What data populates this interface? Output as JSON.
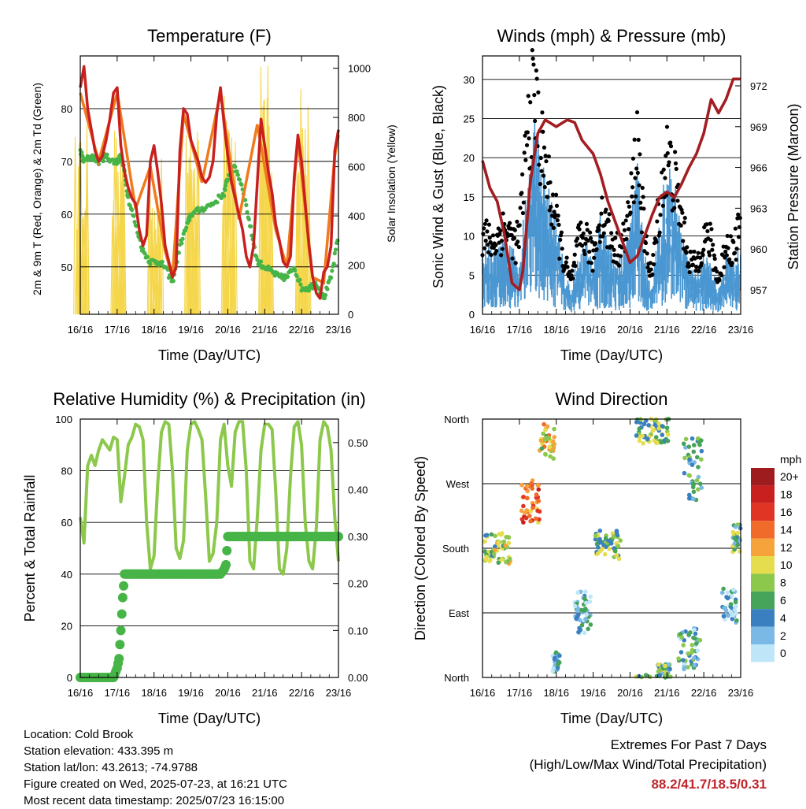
{
  "colors": {
    "temp_red": "#c8201e",
    "temp_orange": "#f07a1e",
    "dewpoint_green": "#46b446",
    "solar_yellow": "#f5d64a",
    "wind_blue": "#4a97d2",
    "gust_black": "#000000",
    "pressure_maroon": "#a31e22",
    "rh_lightgreen": "#8cc84b",
    "precip_green": "#46b446",
    "extremes_red": "#c0262c"
  },
  "time_ticks": [
    "16/16",
    "17/16",
    "18/16",
    "19/16",
    "20/16",
    "21/16",
    "22/16",
    "23/16"
  ],
  "chart_data": [
    {
      "id": "temperature",
      "type": "line",
      "title": "Temperature (F)",
      "xlabel": "Time (Day/UTC)",
      "ylabel": "2m & 9m T (Red, Orange) & 2m Td (Green)",
      "ylabel_right": "Solar Insolation (Yellow)",
      "ylim": [
        41,
        90
      ],
      "yticks": [
        50,
        60,
        70,
        80
      ],
      "ylim_right": [
        0,
        1050
      ],
      "yticks_right": [
        0,
        200,
        400,
        600,
        800,
        1000
      ],
      "xlim": [
        0,
        7
      ],
      "series": [
        {
          "key": "t2m",
          "x": [
            0,
            0.1,
            0.2,
            0.3,
            0.4,
            0.5,
            0.6,
            0.7,
            0.8,
            0.9,
            1.0,
            1.1,
            1.2,
            1.3,
            1.4,
            1.5,
            1.6,
            1.7,
            1.8,
            1.9,
            2.0,
            2.1,
            2.2,
            2.3,
            2.4,
            2.5,
            2.6,
            2.7,
            2.8,
            2.9,
            3.0,
            3.1,
            3.2,
            3.3,
            3.4,
            3.5,
            3.6,
            3.7,
            3.8,
            3.9,
            4.0,
            4.1,
            4.2,
            4.3,
            4.4,
            4.5,
            4.6,
            4.7,
            4.8,
            4.9,
            5.0,
            5.1,
            5.2,
            5.3,
            5.4,
            5.5,
            5.6,
            5.7,
            5.8,
            5.9,
            6.0,
            6.1,
            6.2,
            6.3,
            6.4,
            6.5,
            6.6,
            6.7,
            6.8,
            6.9,
            7.0
          ],
          "y": [
            84,
            88,
            80,
            76,
            72,
            70,
            71,
            74,
            78,
            83,
            84,
            73,
            68,
            65,
            63,
            62,
            57,
            54,
            56,
            70,
            73,
            68,
            62,
            54,
            51,
            48,
            50,
            72,
            80,
            79,
            74,
            72,
            70,
            67,
            66,
            67,
            70,
            79,
            84,
            77,
            71,
            66,
            63,
            60,
            57,
            52,
            50,
            54,
            66,
            78,
            73,
            68,
            64,
            58,
            55,
            51,
            50,
            52,
            67,
            75,
            70,
            62,
            54,
            48,
            45,
            44,
            49,
            50,
            54,
            72,
            76
          ]
        },
        {
          "key": "t9m",
          "x": [
            0,
            0.5,
            1.0,
            1.5,
            1.9,
            2.3,
            2.5,
            2.8,
            3.3,
            3.8,
            4.3,
            4.8,
            5.3,
            5.6,
            5.9,
            6.3,
            6.6,
            6.9,
            7.0
          ],
          "y": [
            83,
            70,
            83,
            61,
            69,
            53,
            48,
            79,
            66,
            83,
            59,
            77,
            57,
            50,
            74,
            48,
            47,
            71,
            75
          ]
        },
        {
          "key": "td2m",
          "x": [
            0,
            0.1,
            0.3,
            0.5,
            0.7,
            0.9,
            1.0,
            1.1,
            1.2,
            1.3,
            1.5,
            1.7,
            1.9,
            2.1,
            2.3,
            2.5,
            2.7,
            2.9,
            3.0,
            3.3,
            3.6,
            3.9,
            4.0,
            4.2,
            4.4,
            4.6,
            4.8,
            5.0,
            5.2,
            5.4,
            5.6,
            5.8,
            6.0,
            6.2,
            6.4,
            6.6,
            6.8,
            7.0
          ],
          "y": [
            72,
            70,
            71,
            70,
            71,
            70,
            70,
            71,
            68,
            63,
            58,
            53,
            51,
            51,
            50,
            47,
            54,
            58,
            60,
            61,
            62,
            64,
            67,
            69,
            65,
            58,
            51,
            50,
            49,
            48,
            48,
            50,
            46,
            46,
            47,
            44,
            48,
            56
          ]
        },
        {
          "key": "solar",
          "axis": "right",
          "days": [
            0,
            1,
            2,
            3,
            4,
            5,
            6
          ],
          "peaks": [
            800,
            770,
            640,
            880,
            900,
            1050,
            960
          ]
        }
      ]
    },
    {
      "id": "winds",
      "type": "line",
      "title": "Winds (mph) & Pressure (mb)",
      "xlabel": "Time (Day/UTC)",
      "ylabel": "Sonic Wind & Gust (Blue, Black)",
      "ylabel_right": "Station Pressure (Maroon)",
      "ylim": [
        0,
        33
      ],
      "yticks": [
        0,
        5,
        10,
        15,
        20,
        25,
        30
      ],
      "ylim_right": [
        955.2,
        974.2
      ],
      "yticks_right": [
        957,
        960,
        963,
        966,
        969,
        972
      ],
      "xlim": [
        0,
        7
      ],
      "series": [
        {
          "key": "pressure",
          "axis": "right",
          "x": [
            0,
            0.2,
            0.4,
            0.6,
            0.8,
            1.0,
            1.1,
            1.3,
            1.5,
            1.7,
            2.0,
            2.3,
            2.5,
            2.7,
            3.0,
            3.2,
            3.4,
            3.6,
            3.8,
            4.0,
            4.2,
            4.4,
            4.6,
            4.8,
            5.0,
            5.2,
            5.4,
            5.6,
            5.8,
            6.0,
            6.2,
            6.4,
            6.6,
            6.8,
            7.0
          ],
          "y": [
            966.5,
            964.5,
            963.5,
            961.0,
            957.5,
            957.0,
            958.5,
            965.0,
            968.5,
            969.5,
            969.0,
            969.5,
            969.3,
            968.0,
            967.0,
            965.5,
            963.5,
            962.0,
            960.5,
            959.0,
            959.5,
            961.0,
            962.5,
            963.8,
            964.2,
            963.8,
            964.8,
            966.0,
            967.0,
            968.5,
            971.0,
            970.0,
            971.0,
            972.5,
            972.5
          ]
        },
        {
          "key": "wind_mean",
          "x": [
            0,
            0.3,
            0.6,
            0.9,
            1.0,
            1.2,
            1.4,
            1.6,
            1.8,
            2.0,
            2.2,
            2.4,
            2.6,
            2.8,
            3.0,
            3.2,
            3.4,
            3.6,
            3.8,
            4.0,
            4.2,
            4.4,
            4.6,
            4.8,
            5.0,
            5.2,
            5.4,
            5.6,
            5.8,
            6.0,
            6.2,
            6.4,
            6.6,
            6.8,
            7.0
          ],
          "y": [
            6,
            5,
            6,
            5,
            5,
            10,
            16,
            13,
            10,
            8,
            4,
            2,
            5,
            6,
            4,
            8,
            6,
            4,
            5,
            8,
            12,
            5,
            2,
            8,
            12,
            11,
            7,
            4,
            3,
            5,
            4,
            2,
            5,
            4,
            6
          ]
        },
        {
          "key": "gust",
          "x": [
            0,
            0.3,
            0.6,
            0.9,
            1.0,
            1.2,
            1.4,
            1.6,
            1.8,
            2.0,
            2.2,
            2.4,
            2.6,
            2.8,
            3.0,
            3.2,
            3.4,
            3.6,
            3.8,
            4.0,
            4.2,
            4.4,
            4.6,
            4.8,
            5.0,
            5.2,
            5.4,
            5.6,
            5.8,
            6.0,
            6.2,
            6.4,
            6.6,
            6.8,
            7.0
          ],
          "y": [
            10,
            9,
            11,
            9,
            10,
            22,
            28,
            21,
            16,
            12,
            7,
            4,
            9,
            10,
            7,
            13,
            11,
            8,
            9,
            13,
            22,
            9,
            5,
            14,
            20,
            17,
            12,
            7,
            6,
            10,
            9,
            4,
            9,
            8,
            12
          ]
        }
      ]
    },
    {
      "id": "humidity",
      "type": "line",
      "title": "Relative Humidity (%) & Precipitation (in)",
      "xlabel": "Time (Day/UTC)",
      "ylabel": "Percent & Total Rainfall",
      "ylim": [
        0,
        100
      ],
      "yticks": [
        0,
        20,
        40,
        60,
        80,
        100
      ],
      "ylim_right": [
        0,
        0.55
      ],
      "yticks_right": [
        "0.00",
        "0.10",
        "0.20",
        "0.30",
        "0.40",
        "0.50"
      ],
      "xlim": [
        0,
        7
      ],
      "series": [
        {
          "key": "rh",
          "x": [
            0,
            0.1,
            0.2,
            0.3,
            0.4,
            0.5,
            0.6,
            0.7,
            0.8,
            0.9,
            1.0,
            1.1,
            1.2,
            1.3,
            1.4,
            1.5,
            1.6,
            1.7,
            1.8,
            1.9,
            2.0,
            2.1,
            2.2,
            2.3,
            2.4,
            2.5,
            2.6,
            2.7,
            2.8,
            2.9,
            3.0,
            3.1,
            3.2,
            3.3,
            3.4,
            3.5,
            3.6,
            3.7,
            3.8,
            3.9,
            4.0,
            4.1,
            4.2,
            4.3,
            4.4,
            4.5,
            4.6,
            4.7,
            4.8,
            4.9,
            5.0,
            5.1,
            5.2,
            5.3,
            5.4,
            5.5,
            5.6,
            5.7,
            5.8,
            5.9,
            6.0,
            6.1,
            6.2,
            6.3,
            6.4,
            6.5,
            6.6,
            6.7,
            6.8,
            6.9,
            7.0
          ],
          "y": [
            62,
            52,
            82,
            86,
            82,
            88,
            92,
            90,
            88,
            93,
            92,
            68,
            78,
            90,
            93,
            98,
            97,
            92,
            60,
            42,
            47,
            75,
            95,
            99,
            98,
            80,
            50,
            46,
            53,
            88,
            98,
            99,
            96,
            92,
            70,
            45,
            48,
            60,
            92,
            98,
            82,
            74,
            95,
            99,
            99,
            80,
            45,
            42,
            62,
            88,
            98,
            98,
            96,
            72,
            42,
            40,
            50,
            78,
            97,
            99,
            90,
            60,
            45,
            42,
            58,
            92,
            99,
            97,
            88,
            62,
            45
          ]
        },
        {
          "key": "precip",
          "axis": "right",
          "x": [
            0,
            0.6,
            0.9,
            1.0,
            1.05,
            1.1,
            1.15,
            1.2,
            1.3,
            1.5,
            1.8,
            2.0,
            2.5,
            3.0,
            3.5,
            3.8,
            3.9,
            3.95,
            4.0,
            4.1,
            4.5,
            5.0,
            5.5,
            6.0,
            6.5,
            7.0
          ],
          "y": [
            0,
            0,
            0,
            0.02,
            0.04,
            0.1,
            0.17,
            0.22,
            0.22,
            0.22,
            0.22,
            0.22,
            0.22,
            0.22,
            0.22,
            0.22,
            0.23,
            0.24,
            0.3,
            0.3,
            0.3,
            0.3,
            0.3,
            0.3,
            0.3,
            0.3
          ]
        }
      ]
    },
    {
      "id": "wind_direction",
      "type": "scatter",
      "title": "Wind Direction",
      "xlabel": "Time (Day/UTC)",
      "ylabel": "Direction (Colored By Speed)",
      "ylim": [
        0,
        360
      ],
      "yticks": [
        "North",
        "East",
        "South",
        "West",
        "North"
      ],
      "xlim": [
        0,
        7
      ],
      "colorbar": {
        "title": "mph",
        "labels": [
          "20+",
          "18",
          "16",
          "14",
          "12",
          "10",
          "8",
          "6",
          "4",
          "2",
          "0"
        ],
        "colors": [
          "#9e1b1e",
          "#c8201e",
          "#e03524",
          "#f06a2a",
          "#f7a33c",
          "#e6dd4e",
          "#8cc84b",
          "#46a35a",
          "#3a7fc0",
          "#7ab8e6",
          "#bfe6f8"
        ]
      },
      "clusters": [
        {
          "x": 0.4,
          "deg": 180,
          "spread": 22,
          "speed": 8,
          "xs": 0.35
        },
        {
          "x": 1.3,
          "deg": 245,
          "spread": 30,
          "speed": 14,
          "xs": 0.25
        },
        {
          "x": 1.75,
          "deg": 330,
          "spread": 25,
          "speed": 10,
          "xs": 0.2
        },
        {
          "x": 2.7,
          "deg": 90,
          "spread": 30,
          "speed": 3,
          "xs": 0.25
        },
        {
          "x": 3.4,
          "deg": 185,
          "spread": 20,
          "speed": 7,
          "xs": 0.35
        },
        {
          "x": 4.6,
          "deg": 345,
          "spread": 20,
          "speed": 7,
          "xs": 0.45
        },
        {
          "x": 5.7,
          "deg": 290,
          "spread": 45,
          "speed": 5,
          "xs": 0.25
        },
        {
          "x": 5.6,
          "deg": 40,
          "spread": 30,
          "speed": 4,
          "xs": 0.3
        },
        {
          "x": 6.7,
          "deg": 100,
          "spread": 25,
          "speed": 3,
          "xs": 0.2
        },
        {
          "x": 6.9,
          "deg": 195,
          "spread": 20,
          "speed": 6,
          "xs": 0.12
        },
        {
          "x": 2.0,
          "deg": 20,
          "spread": 15,
          "speed": 3,
          "xs": 0.1
        },
        {
          "x": 4.9,
          "deg": 10,
          "spread": 10,
          "speed": 6,
          "xs": 0.2
        }
      ]
    }
  ],
  "station": {
    "location": "Location: Cold Brook",
    "elevation": "Station elevation: 433.395 m",
    "latlon": "Station lat/lon: 43.2613; -74.9788",
    "created": "Figure created on Wed, 2025-07-23, at 16:21 UTC",
    "recent": "Most recent data timestamp: 2025/07/23 16:15:00"
  },
  "extremes": {
    "title": "Extremes For Past 7 Days",
    "subtitle": "(High/Low/Max Wind/Total Precipitation)",
    "values": "88.2/41.7/18.5/0.31"
  }
}
